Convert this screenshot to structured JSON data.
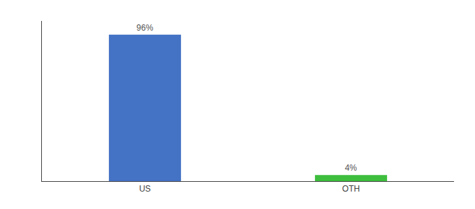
{
  "chart_data": {
    "type": "bar",
    "categories": [
      "US",
      "OTH"
    ],
    "values": [
      96,
      4
    ],
    "value_labels": [
      "96%",
      "4%"
    ],
    "colors": [
      "#4472c4",
      "#3dbe3d"
    ],
    "ylim": [
      0,
      105
    ],
    "data_labels": true,
    "tick_labels": "x",
    "grid": false
  }
}
